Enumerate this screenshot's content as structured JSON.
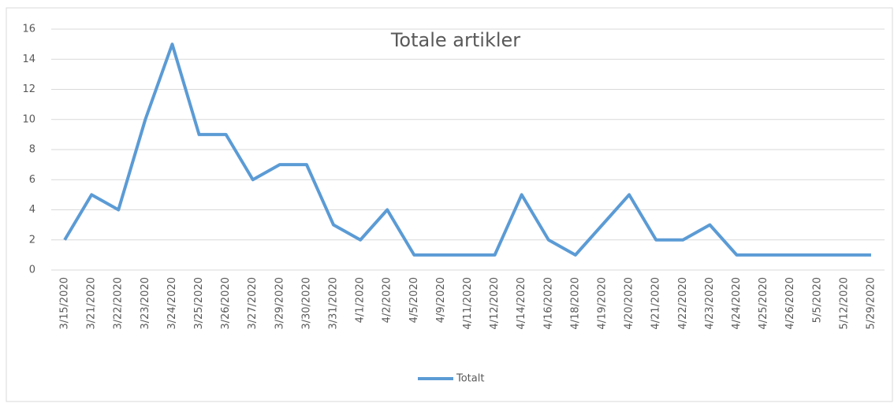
{
  "chart_data": {
    "type": "line",
    "title": "Totale artikler",
    "categories": [
      "3/15/2020",
      "3/21/2020",
      "3/22/2020",
      "3/23/2020",
      "3/24/2020",
      "3/25/2020",
      "3/26/2020",
      "3/27/2020",
      "3/29/2020",
      "3/30/2020",
      "3/31/2020",
      "4/1/2020",
      "4/2/2020",
      "4/5/2020",
      "4/9/2020",
      "4/11/2020",
      "4/12/2020",
      "4/14/2020",
      "4/16/2020",
      "4/18/2020",
      "4/19/2020",
      "4/20/2020",
      "4/21/2020",
      "4/22/2020",
      "4/23/2020",
      "4/24/2020",
      "4/25/2020",
      "4/26/2020",
      "5/5/2020",
      "5/12/2020",
      "5/29/2020"
    ],
    "series": [
      {
        "name": "Totalt",
        "color": "#5b9bd5",
        "values": [
          2,
          5,
          4,
          10,
          15,
          9,
          9,
          6,
          7,
          7,
          3,
          2,
          4,
          1,
          1,
          1,
          1,
          5,
          2,
          1,
          3,
          5,
          2,
          2,
          3,
          1,
          1,
          1,
          1,
          1,
          1
        ]
      }
    ],
    "ylim": [
      0,
      16
    ],
    "yticks": [
      0,
      2,
      4,
      6,
      8,
      10,
      12,
      14,
      16
    ],
    "grid": true,
    "legend": "bottom"
  }
}
